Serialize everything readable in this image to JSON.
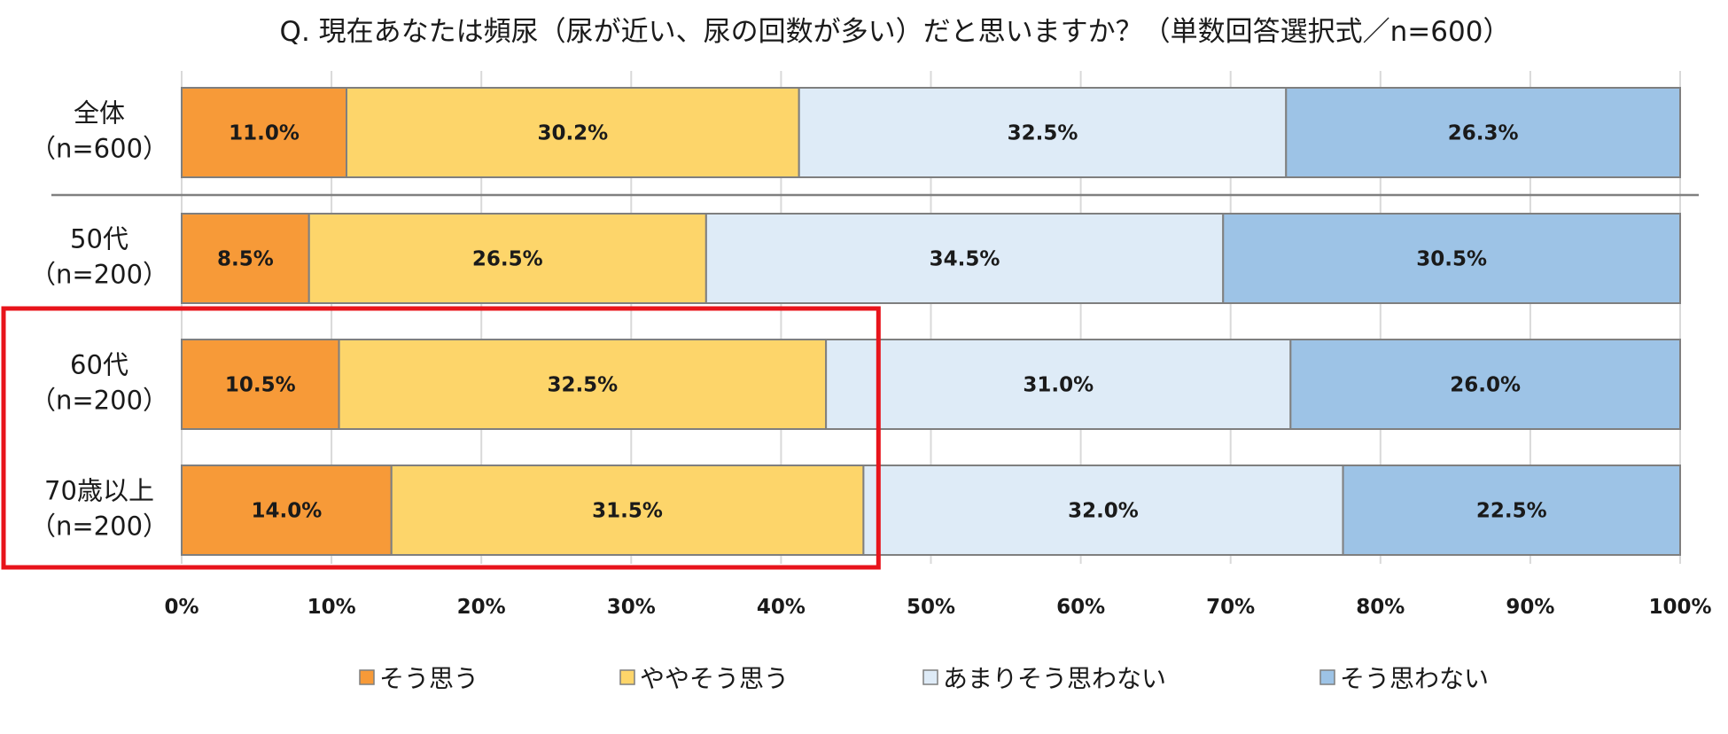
{
  "chart_data": {
    "type": "bar",
    "orientation": "horizontal",
    "stacked": true,
    "normalized": true,
    "title": "Q. 現在あなたは頻尿（尿が近い、尿の回数が多い）だと思いますか？（単数回答選択式／n=600）",
    "categories": [
      [
        "全体",
        "（n=600）"
      ],
      [
        "50代",
        "（n=200）"
      ],
      [
        "60代",
        "（n=200）"
      ],
      [
        "70歳以上",
        "（n=200）"
      ]
    ],
    "series": [
      {
        "name": "そう思う",
        "color": "#F79A38",
        "values": [
          11.0,
          8.5,
          10.5,
          14.0
        ]
      },
      {
        "name": "ややそう思う",
        "color": "#FDD56A",
        "values": [
          30.2,
          26.5,
          32.5,
          31.5
        ]
      },
      {
        "name": "あまりそう思わない",
        "color": "#DEEBF7",
        "values": [
          32.5,
          34.5,
          31.0,
          32.0
        ]
      },
      {
        "name": "そう思わない",
        "color": "#9DC3E6",
        "values": [
          26.3,
          30.5,
          26.0,
          22.5
        ]
      }
    ],
    "xlim": [
      0,
      100
    ],
    "xticks": [
      "0%",
      "10%",
      "20%",
      "30%",
      "40%",
      "50%",
      "60%",
      "70%",
      "80%",
      "90%",
      "100%"
    ],
    "grid": true,
    "legend": "bottom",
    "highlight": {
      "categories": [
        "60代",
        "70歳以上"
      ],
      "x_range": [
        0,
        46.5
      ],
      "color": "#E8141B"
    }
  }
}
